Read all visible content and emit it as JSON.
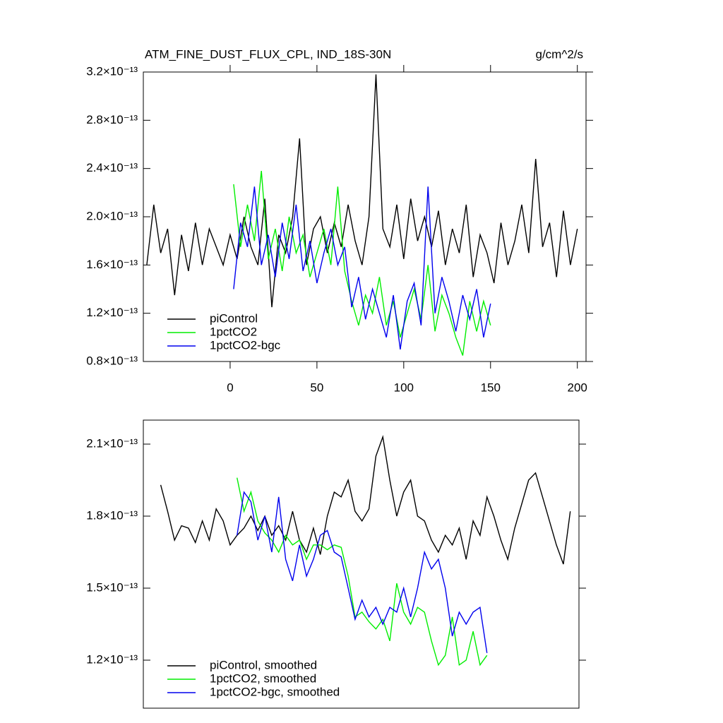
{
  "chart_data": [
    {
      "type": "line",
      "title": "ATM_FINE_DUST_FLUX_CPL, IND_18S-30N",
      "units": "g/cm^2/s",
      "xlim": [
        -50,
        205
      ],
      "xticks": [
        0,
        50,
        100,
        150,
        200
      ],
      "ylim": [
        8e-14,
        3.2e-13
      ],
      "yticks": [
        {
          "value": 8e-14,
          "label": "0.8×10⁻¹³"
        },
        {
          "value": 1.2e-13,
          "label": "1.2×10⁻¹³"
        },
        {
          "value": 1.6e-13,
          "label": "1.6×10⁻¹³"
        },
        {
          "value": 2e-13,
          "label": "2.0×10⁻¹³"
        },
        {
          "value": 2.4e-13,
          "label": "2.4×10⁻¹³"
        },
        {
          "value": 2.8e-13,
          "label": "2.8×10⁻¹³"
        },
        {
          "value": 3.2e-13,
          "label": "3.2×10⁻¹³"
        }
      ],
      "legend": "lower left",
      "series": [
        {
          "name": "piControl",
          "color": "#000000",
          "x": [
            -48,
            -44,
            -40,
            -36,
            -32,
            -28,
            -24,
            -20,
            -16,
            -12,
            -8,
            -4,
            0,
            4,
            8,
            12,
            16,
            20,
            24,
            28,
            32,
            36,
            40,
            44,
            48,
            52,
            56,
            60,
            64,
            68,
            72,
            76,
            80,
            84,
            88,
            92,
            96,
            100,
            104,
            108,
            112,
            116,
            120,
            124,
            128,
            132,
            136,
            140,
            144,
            148,
            152,
            156,
            160,
            164,
            168,
            172,
            176,
            180,
            184,
            188,
            192,
            196,
            200
          ],
          "values": [
            1.6e-13,
            2.1e-13,
            1.7e-13,
            1.9e-13,
            1.35e-13,
            1.85e-13,
            1.55e-13,
            1.95e-13,
            1.6e-13,
            1.9e-13,
            1.75e-13,
            1.6e-13,
            1.85e-13,
            1.65e-13,
            2e-13,
            1.75e-13,
            1.6e-13,
            2.15e-13,
            1.25e-13,
            1.85e-13,
            1.7e-13,
            2e-13,
            2.65e-13,
            1.6e-13,
            1.9e-13,
            2e-13,
            1.7e-13,
            1.95e-13,
            1.75e-13,
            2.1e-13,
            1.8e-13,
            1.6e-13,
            2e-13,
            3.18e-13,
            1.9e-13,
            1.75e-13,
            2.1e-13,
            1.65e-13,
            2.15e-13,
            1.8e-13,
            2e-13,
            1.75e-13,
            2.05e-13,
            1.6e-13,
            1.9e-13,
            1.7e-13,
            2.1e-13,
            1.5e-13,
            1.85e-13,
            1.7e-13,
            1.45e-13,
            1.95e-13,
            1.6e-13,
            1.8e-13,
            2.1e-13,
            1.7e-13,
            2.48e-13,
            1.75e-13,
            1.95e-13,
            1.5e-13,
            2.05e-13,
            1.6e-13,
            1.9e-13
          ]
        },
        {
          "name": "1pctCO2",
          "color": "#00ee00",
          "x": [
            2,
            6,
            10,
            14,
            18,
            22,
            26,
            30,
            34,
            38,
            42,
            46,
            50,
            54,
            58,
            62,
            66,
            70,
            74,
            78,
            82,
            86,
            90,
            94,
            98,
            102,
            106,
            110,
            114,
            118,
            122,
            126,
            130,
            134,
            138,
            142,
            146,
            150
          ],
          "values": [
            2.27e-13,
            1.75e-13,
            2.1e-13,
            1.8e-13,
            2.38e-13,
            1.65e-13,
            1.9e-13,
            1.55e-13,
            2e-13,
            1.7e-13,
            1.85e-13,
            1.5e-13,
            1.7e-13,
            1.9e-13,
            1.6e-13,
            2.25e-13,
            1.55e-13,
            1.3e-13,
            1.1e-13,
            1.35e-13,
            1.2e-13,
            1.5e-13,
            1.1e-13,
            1.3e-13,
            1e-13,
            1.2e-13,
            1.4e-13,
            1.15e-13,
            1.6e-13,
            1.05e-13,
            1.35e-13,
            1.2e-13,
            1e-13,
            8.5e-14,
            1.3e-13,
            1.05e-13,
            1.3e-13,
            1.1e-13
          ]
        },
        {
          "name": "1pctCO2-bgc",
          "color": "#0000ee",
          "x": [
            2,
            6,
            10,
            14,
            18,
            22,
            26,
            30,
            34,
            38,
            42,
            46,
            50,
            54,
            58,
            62,
            66,
            70,
            74,
            78,
            82,
            86,
            90,
            94,
            98,
            102,
            106,
            110,
            114,
            118,
            122,
            126,
            130,
            134,
            138,
            142,
            146,
            150
          ],
          "values": [
            1.4e-13,
            1.95e-13,
            1.75e-13,
            2.25e-13,
            1.6e-13,
            1.85e-13,
            1.5e-13,
            1.95e-13,
            1.65e-13,
            2.1e-13,
            1.55e-13,
            1.8e-13,
            1.45e-13,
            1.7e-13,
            1.9e-13,
            1.6e-13,
            1.75e-13,
            1.25e-13,
            1.5e-13,
            1.15e-13,
            1.4e-13,
            1.2e-13,
            1e-13,
            1.35e-13,
            9e-14,
            1.3e-13,
            1.45e-13,
            1.1e-13,
            2.25e-13,
            1.2e-13,
            1.5e-13,
            1.3e-13,
            1.05e-13,
            1.35e-13,
            1.15e-13,
            1.4e-13,
            1e-13,
            1.28e-13
          ]
        }
      ]
    },
    {
      "type": "line",
      "xlim": [
        -50,
        201
      ],
      "ylim": [
        1e-13,
        2.2e-13
      ],
      "yticks": [
        {
          "value": 1.2e-13,
          "label": "1.2×10⁻¹³"
        },
        {
          "value": 1.5e-13,
          "label": "1.5×10⁻¹³"
        },
        {
          "value": 1.8e-13,
          "label": "1.8×10⁻¹³"
        },
        {
          "value": 2.1e-13,
          "label": "2.1×10⁻¹³"
        }
      ],
      "legend": "lower left",
      "series": [
        {
          "name": "piControl, smoothed",
          "color": "#000000",
          "x": [
            -40,
            -36,
            -32,
            -28,
            -24,
            -20,
            -16,
            -12,
            -8,
            -4,
            0,
            4,
            8,
            12,
            16,
            20,
            24,
            28,
            32,
            36,
            40,
            44,
            48,
            52,
            56,
            60,
            64,
            68,
            72,
            76,
            80,
            84,
            88,
            92,
            96,
            100,
            104,
            108,
            112,
            116,
            120,
            124,
            128,
            132,
            136,
            140,
            144,
            148,
            152,
            156,
            160,
            164,
            168,
            172,
            176,
            180,
            184,
            188,
            192,
            196
          ],
          "values": [
            1.93e-13,
            1.82e-13,
            1.7e-13,
            1.76e-13,
            1.75e-13,
            1.69e-13,
            1.78e-13,
            1.7e-13,
            1.83e-13,
            1.78e-13,
            1.68e-13,
            1.72e-13,
            1.75e-13,
            1.8e-13,
            1.74e-13,
            1.8e-13,
            1.72e-13,
            1.76e-13,
            1.7e-13,
            1.82e-13,
            1.7e-13,
            1.65e-13,
            1.75e-13,
            1.64e-13,
            1.8e-13,
            1.9e-13,
            1.88e-13,
            1.95e-13,
            1.82e-13,
            1.78e-13,
            1.83e-13,
            2.05e-13,
            2.13e-13,
            1.95e-13,
            1.8e-13,
            1.9e-13,
            1.95e-13,
            1.8e-13,
            1.78e-13,
            1.7e-13,
            1.65e-13,
            1.72e-13,
            1.68e-13,
            1.75e-13,
            1.62e-13,
            1.78e-13,
            1.72e-13,
            1.88e-13,
            1.8e-13,
            1.7e-13,
            1.62e-13,
            1.75e-13,
            1.85e-13,
            1.95e-13,
            1.98e-13,
            1.88e-13,
            1.78e-13,
            1.68e-13,
            1.6e-13,
            1.82e-13
          ]
        },
        {
          "name": "1pctCO2, smoothed",
          "color": "#00ee00",
          "x": [
            4,
            8,
            12,
            16,
            20,
            24,
            28,
            32,
            36,
            40,
            44,
            48,
            52,
            56,
            60,
            64,
            68,
            72,
            76,
            80,
            84,
            88,
            92,
            96,
            100,
            104,
            108,
            112,
            116,
            120,
            124,
            128,
            132,
            136,
            140,
            144,
            148
          ],
          "values": [
            1.96e-13,
            1.82e-13,
            1.9e-13,
            1.78e-13,
            1.73e-13,
            1.7e-13,
            1.65e-13,
            1.72e-13,
            1.68e-13,
            1.7e-13,
            1.62e-13,
            1.68e-13,
            1.68e-13,
            1.66e-13,
            1.68e-13,
            1.67e-13,
            1.55e-13,
            1.38e-13,
            1.4e-13,
            1.36e-13,
            1.33e-13,
            1.37e-13,
            1.28e-13,
            1.52e-13,
            1.4e-13,
            1.35e-13,
            1.42e-13,
            1.4e-13,
            1.28e-13,
            1.18e-13,
            1.22e-13,
            1.38e-13,
            1.18e-13,
            1.2e-13,
            1.32e-13,
            1.18e-13,
            1.22e-13
          ]
        },
        {
          "name": "1pctCO2-bgc, smoothed",
          "color": "#0000ee",
          "x": [
            4,
            8,
            12,
            16,
            20,
            24,
            28,
            32,
            36,
            40,
            44,
            48,
            52,
            56,
            60,
            64,
            68,
            72,
            76,
            80,
            84,
            88,
            92,
            96,
            100,
            104,
            108,
            112,
            116,
            120,
            124,
            128,
            132,
            136,
            140,
            144,
            148
          ],
          "values": [
            1.72e-13,
            1.9e-13,
            1.86e-13,
            1.7e-13,
            1.8e-13,
            1.65e-13,
            1.88e-13,
            1.62e-13,
            1.53e-13,
            1.68e-13,
            1.55e-13,
            1.62e-13,
            1.72e-13,
            1.74e-13,
            1.65e-13,
            1.63e-13,
            1.5e-13,
            1.37e-13,
            1.45e-13,
            1.38e-13,
            1.42e-13,
            1.35e-13,
            1.42e-13,
            1.4e-13,
            1.5e-13,
            1.38e-13,
            1.5e-13,
            1.65e-13,
            1.58e-13,
            1.62e-13,
            1.5e-13,
            1.3e-13,
            1.4e-13,
            1.35e-13,
            1.4e-13,
            1.42e-13,
            1.23e-13
          ]
        }
      ]
    }
  ]
}
